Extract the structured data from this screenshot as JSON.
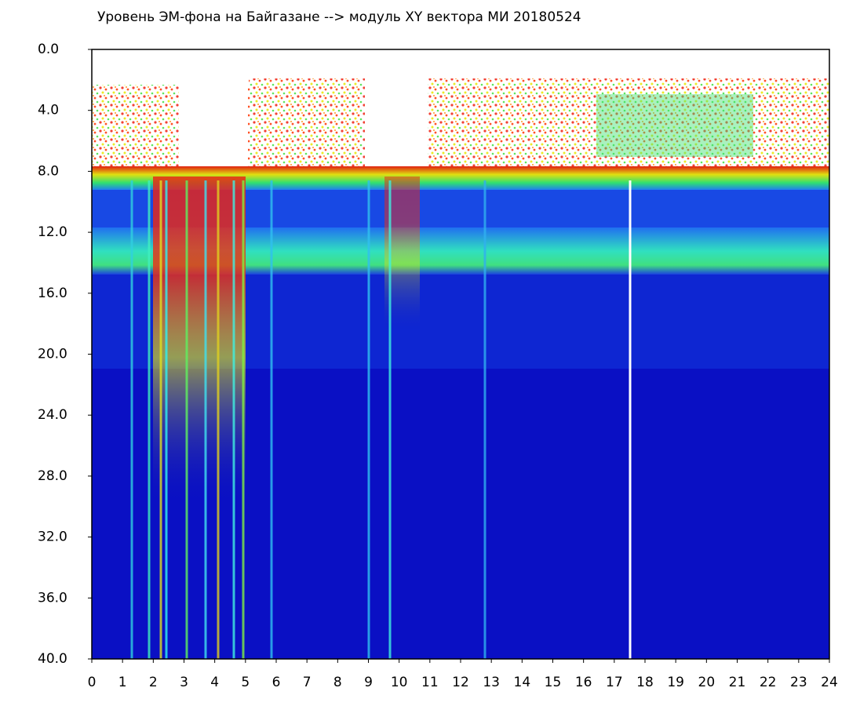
{
  "chart_data": {
    "type": "heatmap",
    "title": "Уровень ЭМ-фона на Байгазане  --> модуль XY вектора МИ  20180524",
    "xlim": [
      0,
      24
    ],
    "xticks": [
      0,
      1,
      2,
      3,
      4,
      5,
      6,
      7,
      8,
      9,
      10,
      11,
      12,
      13,
      14,
      15,
      16,
      17,
      18,
      19,
      20,
      21,
      22,
      23,
      24
    ],
    "ylim": [
      0,
      40
    ],
    "y_inverted": true,
    "yticks": [
      {
        "value": 0,
        "label": "0.0"
      },
      {
        "value": 4,
        "label": "4.0"
      },
      {
        "value": 8,
        "label": "8.0"
      },
      {
        "value": 12,
        "label": "12.0"
      },
      {
        "value": 16,
        "label": "16.0"
      },
      {
        "value": 20,
        "label": "20.0"
      },
      {
        "value": 24,
        "label": "24.0"
      },
      {
        "value": 28,
        "label": "28.0"
      },
      {
        "value": 32,
        "label": "32.0"
      },
      {
        "value": 36,
        "label": "36.0"
      },
      {
        "value": 40,
        "label": "40.0"
      }
    ]
  }
}
